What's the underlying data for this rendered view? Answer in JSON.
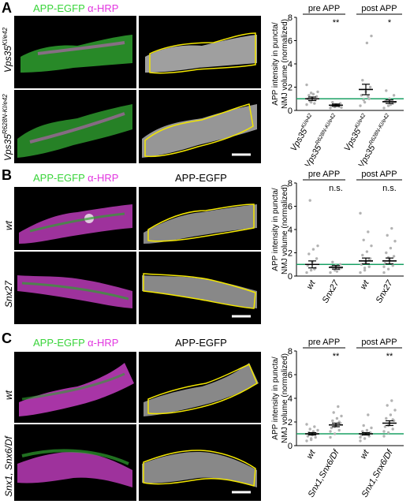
{
  "colors": {
    "egfp": "#39d43a",
    "hrp": "#e236e0",
    "outline": "#f2e600",
    "mean_line": "#1aa064",
    "dots": "#b3b3b3"
  },
  "panels": [
    {
      "letter": "A",
      "merge_title": {
        "a": "APP-EGFP",
        "b": "α-HRP"
      },
      "gray_title": "",
      "rows": [
        {
          "label": "Vps35",
          "sup": "KI/e42"
        },
        {
          "label": "Vps35",
          "sup": "R628N-KI/e42"
        }
      ]
    },
    {
      "letter": "B",
      "merge_title": {
        "a": "APP-EGFP",
        "b": "α-HRP"
      },
      "gray_title": "APP-EGFP",
      "rows": [
        {
          "label": "wt",
          "sup": ""
        },
        {
          "label": "Snx27",
          "sup": ""
        }
      ]
    },
    {
      "letter": "C",
      "merge_title": {
        "a": "APP-EGFP",
        "b": "α-HRP"
      },
      "gray_title": "APP-EGFP",
      "rows": [
        {
          "label": "wt",
          "sup": ""
        },
        {
          "label": "Snx1, Snx6/Df",
          "sup": ""
        }
      ]
    }
  ],
  "chart_data": [
    {
      "type": "scatter",
      "ylabel": "APP intensity in puncta/ NMJ volume (normalized)",
      "ylim": [
        0,
        8
      ],
      "yticks": [
        "0",
        "2",
        "4",
        "6",
        "8"
      ],
      "groups": [
        "pre APP",
        "post APP"
      ],
      "categories": [
        {
          "label": "Vps35",
          "sup": "KI/e42"
        },
        {
          "label": "Vps35",
          "sup": "R628N-KI/e42"
        },
        {
          "label": "Vps35",
          "sup": "KI/e42"
        },
        {
          "label": "Vps35",
          "sup": "R628N-KI/e42"
        }
      ],
      "means": [
        1.0,
        0.45,
        1.8,
        0.75
      ],
      "sem": [
        0.15,
        0.1,
        0.45,
        0.15
      ],
      "significance": [
        "",
        "**",
        "",
        "*"
      ],
      "points": [
        [
          0.5,
          0.7,
          0.9,
          1.0,
          1.1,
          1.2,
          1.3,
          1.4,
          1.6,
          0.8,
          0.6,
          2.2,
          1.5
        ],
        [
          0.2,
          0.3,
          0.35,
          0.4,
          0.5,
          0.6,
          0.7,
          0.45,
          0.25
        ],
        [
          0.4,
          0.7,
          1.0,
          1.3,
          1.6,
          2.0,
          2.6,
          5.8,
          6.4,
          0.9,
          1.2
        ],
        [
          0.2,
          0.4,
          0.6,
          0.8,
          1.0,
          1.3,
          1.7,
          0.5,
          0.7
        ]
      ],
      "reference_line": 1
    },
    {
      "type": "scatter",
      "ylabel": "APP intensity in puncta/ NMJ volume (normalized)",
      "ylim": [
        0,
        8
      ],
      "yticks": [
        "0",
        "2",
        "4",
        "6",
        "8"
      ],
      "groups": [
        "pre APP",
        "post APP"
      ],
      "categories": [
        {
          "label": "wt",
          "sup": ""
        },
        {
          "label": "Snx27",
          "sup": ""
        },
        {
          "label": "wt",
          "sup": ""
        },
        {
          "label": "Snx27",
          "sup": ""
        }
      ],
      "means": [
        1.0,
        0.75,
        1.3,
        1.3
      ],
      "sem": [
        0.3,
        0.15,
        0.25,
        0.25
      ],
      "significance": [
        "",
        "n.s.",
        "",
        "n.s."
      ],
      "points": [
        [
          0.3,
          0.5,
          0.7,
          0.9,
          1.2,
          1.5,
          1.9,
          2.3,
          2.6,
          6.5,
          0.6
        ],
        [
          0.3,
          0.5,
          0.6,
          0.8,
          0.9,
          1.0,
          1.2,
          0.4,
          0.7
        ],
        [
          0.3,
          0.5,
          0.8,
          1.0,
          1.2,
          1.5,
          1.8,
          2.1,
          2.6,
          3.1,
          3.8,
          5.4,
          0.7,
          1.4
        ],
        [
          0.3,
          0.6,
          0.9,
          1.1,
          1.4,
          1.7,
          2.0,
          2.4,
          3.0,
          3.5,
          4.1,
          0.8,
          1.6
        ]
      ],
      "reference_line": 1
    },
    {
      "type": "scatter",
      "ylabel": "APP intensity in puncta/ NMJ volume (normalized)",
      "ylim": [
        0,
        8
      ],
      "yticks": [
        "0",
        "2",
        "4",
        "6",
        "8"
      ],
      "groups": [
        "pre APP",
        "post APP"
      ],
      "categories": [
        {
          "label": "wt",
          "sup": ""
        },
        {
          "label": "Snx1,Snx6/Df",
          "sup": ""
        },
        {
          "label": "wt",
          "sup": ""
        },
        {
          "label": "Snx1,Snx6/Df",
          "sup": ""
        }
      ],
      "means": [
        1.0,
        1.75,
        1.0,
        1.9
      ],
      "sem": [
        0.1,
        0.15,
        0.1,
        0.2
      ],
      "significance": [
        "",
        "**",
        "",
        "**"
      ],
      "points": [
        [
          0.4,
          0.6,
          0.7,
          0.8,
          0.9,
          1.0,
          1.1,
          1.2,
          1.3,
          1.4,
          1.6,
          1.8,
          0.5,
          1.0
        ],
        [
          0.7,
          1.0,
          1.3,
          1.5,
          1.7,
          1.9,
          2.1,
          2.3,
          2.5,
          2.8,
          3.3,
          1.2,
          1.6,
          2.0
        ],
        [
          0.4,
          0.6,
          0.8,
          0.9,
          1.0,
          1.1,
          1.2,
          1.3,
          1.5,
          1.7,
          2.6,
          0.7
        ],
        [
          0.8,
          1.1,
          1.4,
          1.6,
          1.9,
          2.1,
          2.3,
          2.6,
          3.0,
          3.4,
          3.8,
          1.2,
          1.7,
          2.2
        ]
      ],
      "reference_line": 1
    }
  ]
}
